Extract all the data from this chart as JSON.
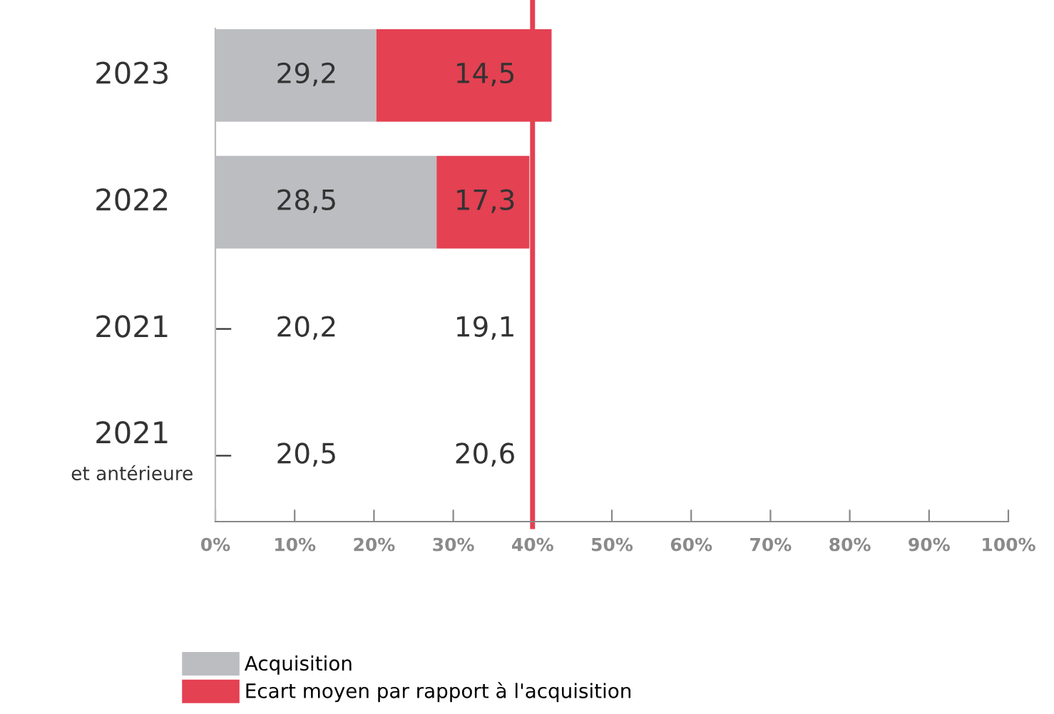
{
  "chart_data": {
    "type": "bar",
    "orientation": "horizontal",
    "stacked": true,
    "categories": [
      "2023",
      "2022",
      "2021",
      "2021\net antérieure"
    ],
    "series": [
      {
        "name": "Acquisition",
        "color": "#bcbdc1",
        "values": [
          20.3,
          27.9,
          0,
          0
        ]
      },
      {
        "name": "Ecart moyen par rapport à l'acquisition",
        "color": "#e44152",
        "values": [
          22.1,
          11.7,
          0,
          0
        ]
      }
    ],
    "annotations": [
      "29,2",
      "14,5",
      "28,5",
      "17,3",
      "20,2",
      "19,1",
      "20,5",
      "20,6"
    ],
    "xlim": [
      0,
      100
    ],
    "xticks": [
      {
        "value": 0,
        "label": "0%"
      },
      {
        "value": 10,
        "label": "10%"
      },
      {
        "value": 20,
        "label": "20%"
      },
      {
        "value": 30,
        "label": "30%"
      },
      {
        "value": 40,
        "label": "40%"
      },
      {
        "value": 50,
        "label": "50%"
      },
      {
        "value": 60,
        "label": "60%"
      },
      {
        "value": 70,
        "label": "70%"
      },
      {
        "value": 80,
        "label": "80%"
      },
      {
        "value": 90,
        "label": "90%"
      },
      {
        "value": 100,
        "label": "100%"
      }
    ],
    "ref_lines": [
      {
        "axis": "x",
        "value": 40,
        "color": "#e44152"
      }
    ],
    "grid": false,
    "legend": "bottom left"
  }
}
